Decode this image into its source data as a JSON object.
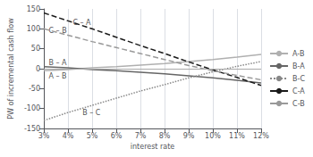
{
  "chart_data": {
    "type": "line",
    "xlabel": "interest rate",
    "ylabel": "PW of incremental cash flow",
    "x": [
      3,
      4,
      5,
      6,
      7,
      8,
      9,
      10,
      11,
      12
    ],
    "series": [
      {
        "name": "A-B",
        "color": "#b0b0b0",
        "line_style": "solid",
        "values": [
          -5,
          -2,
          2,
          5,
          9,
          13,
          18,
          23,
          29,
          36
        ]
      },
      {
        "name": "B-A",
        "color": "#666666",
        "line_style": "solid",
        "values": [
          5,
          2,
          -2,
          -5,
          -9,
          -13,
          -18,
          -23,
          -29,
          -36
        ]
      },
      {
        "name": "B-C",
        "color": "#888888",
        "line_style": "dotted",
        "values": [
          -130,
          -110,
          -92,
          -74,
          -56,
          -40,
          -23,
          -8,
          6,
          18
        ]
      },
      {
        "name": "C-A",
        "color": "#1a1a1a",
        "line_style": "dashed",
        "values": [
          140,
          120,
          100,
          79,
          58,
          38,
          17,
          -3,
          -22,
          -42
        ]
      },
      {
        "name": "C-B",
        "color": "#999999",
        "line_style": "dashed",
        "values": [
          100,
          84,
          68,
          53,
          38,
          23,
          8,
          -5,
          -17,
          -28
        ]
      }
    ],
    "annotations": [
      {
        "x": 4.2,
        "y": 115,
        "text": "C – A"
      },
      {
        "x": 3.2,
        "y": 96,
        "text": "C – B"
      },
      {
        "x": 3.2,
        "y": 14,
        "text": "B – A"
      },
      {
        "x": 3.2,
        "y": -20,
        "text": "A – B"
      },
      {
        "x": 4.6,
        "y": -110,
        "text": "B – C"
      }
    ],
    "xlim": [
      3,
      12
    ],
    "xticks": [
      {
        "value": 3,
        "label": "3%"
      },
      {
        "value": 4,
        "label": "4%"
      },
      {
        "value": 5,
        "label": "5%"
      },
      {
        "value": 6,
        "label": "6%"
      },
      {
        "value": 7,
        "label": "7%"
      },
      {
        "value": 8,
        "label": "8%"
      },
      {
        "value": 9,
        "label": "9%"
      },
      {
        "value": 10,
        "label": "10%"
      },
      {
        "value": 11,
        "label": "11%"
      },
      {
        "value": 12,
        "label": "12%"
      }
    ],
    "ylim": [
      -150,
      150
    ],
    "yticks": [
      -150,
      -100,
      -50,
      0,
      50,
      100,
      150
    ],
    "grid": "x",
    "legend": "right"
  }
}
